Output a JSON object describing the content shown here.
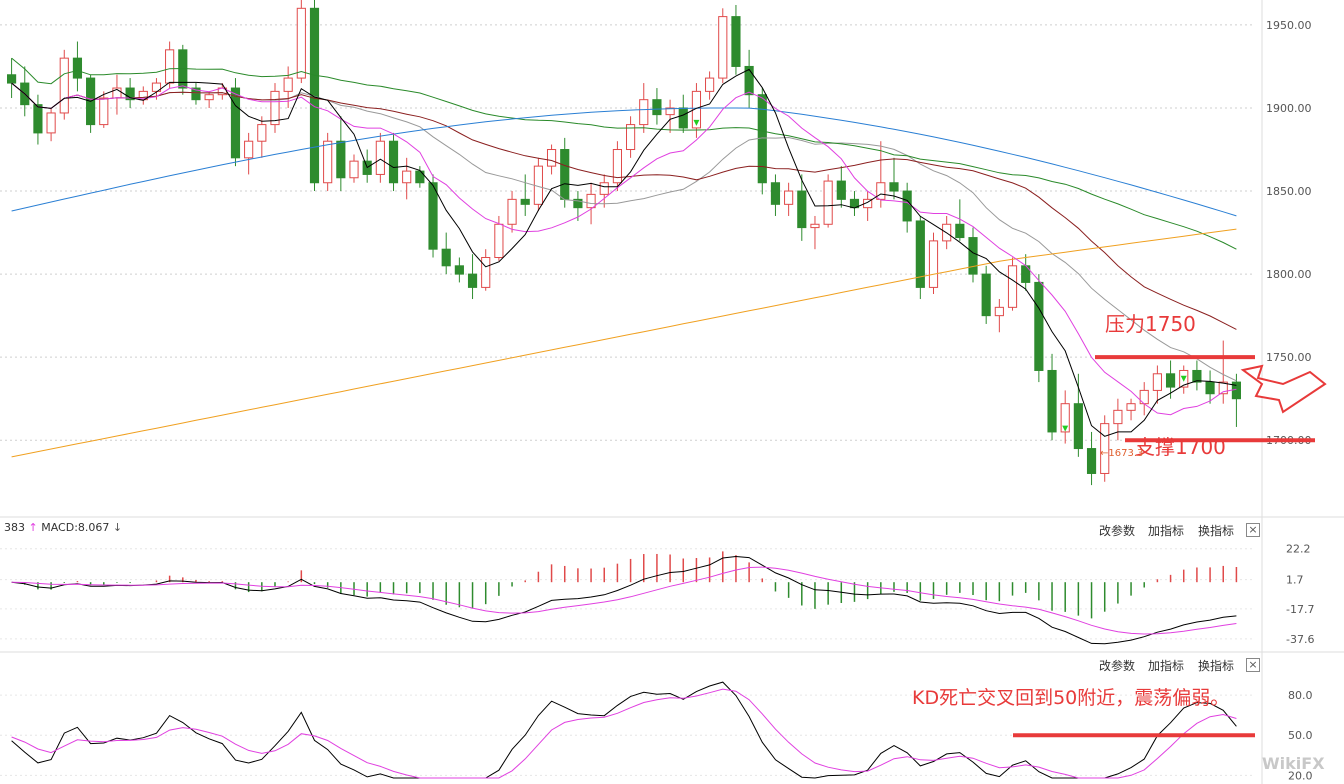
{
  "chart_data": [
    {
      "type": "candlestick",
      "panel": "price",
      "price_ticks": [
        "1950.00",
        "1900.00",
        "1850.00",
        "1800.00",
        "1750.00",
        "1700.00"
      ],
      "ylim": [
        1655,
        1965
      ],
      "candles": [
        [
          1920,
          1930,
          1906,
          1915
        ],
        [
          1915,
          1925,
          1895,
          1902
        ],
        [
          1902,
          1908,
          1878,
          1885
        ],
        [
          1885,
          1900,
          1880,
          1897
        ],
        [
          1897,
          1935,
          1893,
          1930
        ],
        [
          1930,
          1940,
          1910,
          1918
        ],
        [
          1918,
          1920,
          1885,
          1890
        ],
        [
          1890,
          1910,
          1888,
          1906
        ],
        [
          1906,
          1920,
          1896,
          1912
        ],
        [
          1912,
          1918,
          1900,
          1905
        ],
        [
          1905,
          1913,
          1902,
          1910
        ],
        [
          1910,
          1918,
          1905,
          1915
        ],
        [
          1915,
          1940,
          1912,
          1935
        ],
        [
          1935,
          1938,
          1908,
          1912
        ],
        [
          1912,
          1915,
          1902,
          1905
        ],
        [
          1905,
          1910,
          1900,
          1908
        ],
        [
          1908,
          1915,
          1905,
          1912
        ],
        [
          1912,
          1918,
          1865,
          1870
        ],
        [
          1870,
          1885,
          1860,
          1880
        ],
        [
          1880,
          1895,
          1870,
          1890
        ],
        [
          1890,
          1915,
          1885,
          1910
        ],
        [
          1910,
          1925,
          1900,
          1918
        ],
        [
          1918,
          1965,
          1915,
          1960
        ],
        [
          1960,
          1968,
          1850,
          1855
        ],
        [
          1855,
          1885,
          1850,
          1880
        ],
        [
          1880,
          1895,
          1850,
          1858
        ],
        [
          1858,
          1872,
          1855,
          1868
        ],
        [
          1868,
          1875,
          1855,
          1860
        ],
        [
          1860,
          1885,
          1855,
          1880
        ],
        [
          1880,
          1885,
          1850,
          1855
        ],
        [
          1855,
          1870,
          1845,
          1862
        ],
        [
          1862,
          1865,
          1852,
          1855
        ],
        [
          1855,
          1860,
          1810,
          1815
        ],
        [
          1815,
          1825,
          1800,
          1805
        ],
        [
          1805,
          1810,
          1795,
          1800
        ],
        [
          1800,
          1812,
          1785,
          1792
        ],
        [
          1792,
          1815,
          1790,
          1810
        ],
        [
          1810,
          1835,
          1808,
          1830
        ],
        [
          1830,
          1850,
          1825,
          1845
        ],
        [
          1845,
          1860,
          1835,
          1842
        ],
        [
          1842,
          1870,
          1838,
          1865
        ],
        [
          1865,
          1878,
          1860,
          1875
        ],
        [
          1875,
          1882,
          1840,
          1845
        ],
        [
          1845,
          1850,
          1832,
          1840
        ],
        [
          1840,
          1855,
          1830,
          1848
        ],
        [
          1848,
          1860,
          1840,
          1855
        ],
        [
          1855,
          1880,
          1850,
          1875
        ],
        [
          1875,
          1895,
          1870,
          1890
        ],
        [
          1890,
          1915,
          1885,
          1905
        ],
        [
          1905,
          1912,
          1890,
          1896
        ],
        [
          1896,
          1905,
          1885,
          1900
        ],
        [
          1900,
          1908,
          1885,
          1888
        ],
        [
          1888,
          1915,
          1882,
          1910
        ],
        [
          1910,
          1922,
          1905,
          1918
        ],
        [
          1918,
          1960,
          1915,
          1955
        ],
        [
          1955,
          1962,
          1920,
          1925
        ],
        [
          1925,
          1935,
          1900,
          1908
        ],
        [
          1908,
          1912,
          1848,
          1855
        ],
        [
          1855,
          1860,
          1835,
          1842
        ],
        [
          1842,
          1855,
          1835,
          1850
        ],
        [
          1850,
          1860,
          1820,
          1828
        ],
        [
          1828,
          1835,
          1815,
          1830
        ],
        [
          1830,
          1860,
          1828,
          1856
        ],
        [
          1856,
          1865,
          1840,
          1845
        ],
        [
          1845,
          1850,
          1835,
          1840
        ],
        [
          1840,
          1850,
          1832,
          1845
        ],
        [
          1845,
          1880,
          1840,
          1855
        ],
        [
          1855,
          1870,
          1845,
          1850
        ],
        [
          1850,
          1855,
          1825,
          1832
        ],
        [
          1832,
          1835,
          1785,
          1792
        ],
        [
          1792,
          1825,
          1788,
          1820
        ],
        [
          1820,
          1835,
          1815,
          1830
        ],
        [
          1830,
          1845,
          1820,
          1822
        ],
        [
          1822,
          1828,
          1795,
          1800
        ],
        [
          1800,
          1805,
          1770,
          1775
        ],
        [
          1775,
          1785,
          1765,
          1780
        ],
        [
          1780,
          1810,
          1778,
          1805
        ],
        [
          1805,
          1812,
          1790,
          1795
        ],
        [
          1795,
          1800,
          1735,
          1742
        ],
        [
          1742,
          1752,
          1700,
          1705
        ],
        [
          1705,
          1730,
          1698,
          1722
        ],
        [
          1722,
          1740,
          1690,
          1695
        ],
        [
          1695,
          1705,
          1673,
          1680
        ],
        [
          1680,
          1715,
          1675,
          1710
        ],
        [
          1710,
          1725,
          1700,
          1718
        ],
        [
          1718,
          1725,
          1712,
          1722
        ],
        [
          1722,
          1735,
          1715,
          1730
        ],
        [
          1730,
          1745,
          1722,
          1740
        ],
        [
          1740,
          1748,
          1725,
          1732
        ],
        [
          1732,
          1745,
          1728,
          1742
        ],
        [
          1742,
          1748,
          1730,
          1735
        ],
        [
          1735,
          1742,
          1722,
          1728
        ],
        [
          1728,
          1760,
          1722,
          1735
        ],
        [
          1735,
          1740,
          1708,
          1725
        ]
      ],
      "moving_averages": [
        "MA5",
        "MA10",
        "MA20",
        "MA30",
        "MA60",
        "MA120",
        "MA250"
      ],
      "annotations": {
        "resistance_label": "压力1750",
        "resistance_value": 1750,
        "support_label": "支撑1700",
        "support_value": 1700,
        "low_marker": "1673.3"
      }
    },
    {
      "type": "macd",
      "panel": "macd",
      "label_fragment": "383",
      "label_value": "MACD:8.067",
      "tick_labels": [
        "22.2",
        "1.7",
        "-17.7",
        "-37.6"
      ],
      "ylim": [
        -45,
        28
      ]
    },
    {
      "type": "kd",
      "panel": "kd",
      "tick_labels": [
        "80.0",
        "50.0",
        "20.0"
      ],
      "ylim": [
        15,
        95
      ],
      "reference_value": 50,
      "annotation": "KD死亡交叉回到50附近，震荡偏弱。"
    }
  ],
  "controls": {
    "modify_params": "改参数",
    "add_indicator": "加指标",
    "swap_indicator": "换指标",
    "close": "×"
  },
  "watermark": "WikiFX",
  "colors": {
    "up": "#e04a4a",
    "down": "#2e8b2e",
    "annotation": "#e83a3a",
    "ma5": "#000000",
    "ma10": "#e040e0",
    "ma20": "#999999",
    "ma30": "#8b2020",
    "ma60": "#2a8a2a",
    "ma120": "#2a7fd4",
    "ma250": "#f0a020"
  }
}
